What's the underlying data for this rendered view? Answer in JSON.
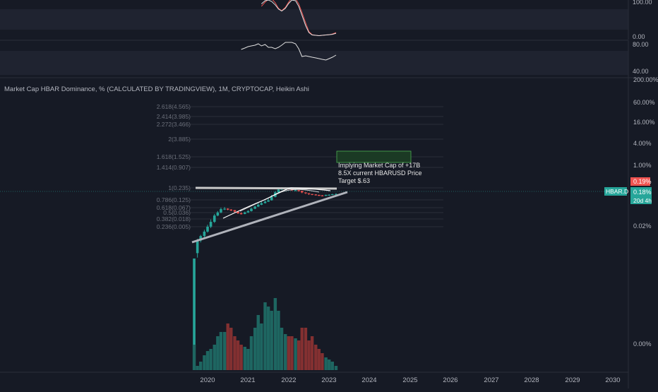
{
  "colors": {
    "background": "#161a25",
    "panel_band": "#1f2330",
    "grid": "#2a2e39",
    "text": "#b2b5be",
    "up": "#26a69a",
    "down": "#ef5350",
    "trendline": "#b2b5be",
    "box": "#1b5e20",
    "box_border": "#4caf50",
    "price_tag": "#26a69a",
    "red_tag": "#ef5350"
  },
  "oscillator_1": {
    "scale_labels": [
      "100.00",
      "0.00"
    ],
    "range": [
      0,
      100
    ],
    "series": [
      {
        "name": "",
        "color": "#ef5350",
        "x": [
          2021.33,
          2021.42,
          2021.5,
          2021.58,
          2021.67,
          2021.75,
          2021.83,
          2021.92,
          2022.0,
          2022.08,
          2022.17,
          2022.25,
          2022.33,
          2022.42,
          2022.5,
          2022.58,
          2022.67,
          2022.75,
          2022.83,
          2022.92,
          2023.0,
          2023.08,
          2023.17
        ],
        "y": [
          88,
          100,
          108,
          110,
          98,
          82,
          75,
          85,
          100,
          112,
          110,
          95,
          70,
          40,
          15,
          6,
          4,
          3,
          4,
          5,
          6,
          8,
          12
        ]
      },
      {
        "name": "",
        "color": "#e0e0e0",
        "x": [
          2021.33,
          2021.42,
          2021.5,
          2021.58,
          2021.67,
          2021.75,
          2021.83,
          2021.92,
          2022.0,
          2022.08,
          2022.17,
          2022.25,
          2022.33,
          2022.42,
          2022.5,
          2022.58,
          2022.67,
          2022.75,
          2022.83,
          2022.92,
          2023.0,
          2023.08,
          2023.17
        ],
        "y": [
          95,
          104,
          106,
          102,
          92,
          80,
          74,
          82,
          96,
          106,
          104,
          88,
          62,
          32,
          12,
          5,
          4,
          3,
          4,
          5,
          6,
          7,
          10
        ]
      }
    ]
  },
  "oscillator_2": {
    "scale_labels": [
      "80.00",
      "40.00"
    ],
    "range": [
      40,
      80
    ],
    "series": [
      {
        "name": "",
        "color": "#e0e0e0",
        "x": [
          2020.83,
          2020.92,
          2021.0,
          2021.08,
          2021.17,
          2021.25,
          2021.33,
          2021.42,
          2021.5,
          2021.58,
          2021.67,
          2021.75,
          2021.83,
          2021.92,
          2022.0,
          2022.08,
          2022.17,
          2022.25,
          2022.33,
          2022.42,
          2022.5,
          2022.58,
          2022.67,
          2022.75,
          2022.83,
          2022.92,
          2023.0,
          2023.08,
          2023.17
        ],
        "y": [
          70,
          72,
          74,
          75,
          76,
          78,
          75,
          77,
          73,
          73,
          71,
          73,
          76,
          80,
          80,
          80,
          78,
          71,
          60,
          61,
          60,
          59,
          58,
          57,
          56,
          55,
          57,
          59,
          62
        ]
      }
    ]
  },
  "main": {
    "title": "Market Cap HBAR Dominance, % (CALCULATED BY TRADINGVIEW), 1M, CRYPTOCAP, Heikin Ashi",
    "y_axis_labels": [
      "200.00%",
      "60.00%",
      "16.00%",
      "4.00%",
      "1.00%",
      "0.02%",
      "0.00%"
    ],
    "fib_labels": [
      "2.618(4.565)",
      "2.414(3.985)",
      "2.272(3.466)",
      "2(3.885)",
      "1.618(1.525)",
      "1.414(0.907)",
      "1(0.235)",
      "0.786(0.125)",
      "0.618(0.067)",
      "0.5(0.036)",
      "0.382(0.018)",
      "0.236(0.005)"
    ],
    "annotation_lines": [
      "Implying Market Cap of +17B",
      "8.5X current HBARUSD Price",
      "Target $.63"
    ],
    "symbol_tag": "HBAR.D",
    "price_tag_red": "0.19%",
    "price_tag_green": "0.18%",
    "countdown": "20d 4h",
    "x_axis_labels": [
      "2020",
      "2021",
      "2022",
      "2023",
      "2024",
      "2025",
      "2026",
      "2027",
      "2028",
      "2029",
      "2030"
    ]
  },
  "chart_data": {
    "type": "candlestick",
    "title": "Market Cap HBAR Dominance, % (CALCULATED BY TRADINGVIEW), 1M, CRYPTOCAP, Heikin Ashi",
    "x_ticks": [
      "2020",
      "2021",
      "2022",
      "2023",
      "2024",
      "2025",
      "2026",
      "2027",
      "2028",
      "2029",
      "2030"
    ],
    "x_range": [
      2019.6,
      2030.5
    ],
    "y_scale": "log",
    "candles": {
      "x": [
        2019.67,
        2019.75,
        2019.83,
        2019.92,
        2020.0,
        2020.08,
        2020.17,
        2020.25,
        2020.33,
        2020.42,
        2020.5,
        2020.58,
        2020.67,
        2020.75,
        2020.83,
        2020.92,
        2021.0,
        2021.08,
        2021.17,
        2021.25,
        2021.33,
        2021.42,
        2021.5,
        2021.58,
        2021.67,
        2021.75,
        2021.83,
        2021.92,
        2022.0,
        2022.08,
        2022.17,
        2022.25,
        2022.33,
        2022.42,
        2022.5,
        2022.58,
        2022.67,
        2022.75,
        2022.83,
        2022.92,
        2023.0,
        2023.08,
        2023.17
      ],
      "open": [
        1e-05,
        0.004,
        0.009,
        0.012,
        0.016,
        0.022,
        0.03,
        0.045,
        0.055,
        0.068,
        0.07,
        0.066,
        0.064,
        0.058,
        0.052,
        0.05,
        0.055,
        0.06,
        0.07,
        0.08,
        0.09,
        0.1,
        0.11,
        0.12,
        0.15,
        0.2,
        0.24,
        0.26,
        0.26,
        0.25,
        0.23,
        0.23,
        0.22,
        0.2,
        0.19,
        0.18,
        0.175,
        0.17,
        0.165,
        0.16,
        0.17,
        0.172,
        0.178
      ],
      "close": [
        0.004,
        0.009,
        0.012,
        0.016,
        0.022,
        0.03,
        0.045,
        0.055,
        0.068,
        0.07,
        0.066,
        0.064,
        0.058,
        0.052,
        0.05,
        0.055,
        0.06,
        0.07,
        0.08,
        0.09,
        0.1,
        0.11,
        0.12,
        0.15,
        0.2,
        0.24,
        0.26,
        0.26,
        0.25,
        0.23,
        0.23,
        0.22,
        0.2,
        0.19,
        0.18,
        0.175,
        0.17,
        0.165,
        0.16,
        0.17,
        0.172,
        0.178,
        0.18
      ],
      "high": [
        0.005,
        0.01,
        0.013,
        0.018,
        0.025,
        0.035,
        0.05,
        0.06,
        0.075,
        0.078,
        0.072,
        0.068,
        0.062,
        0.058,
        0.056,
        0.058,
        0.064,
        0.075,
        0.085,
        0.1,
        0.11,
        0.12,
        0.14,
        0.17,
        0.22,
        0.27,
        0.28,
        0.28,
        0.27,
        0.25,
        0.24,
        0.235,
        0.22,
        0.2,
        0.19,
        0.18,
        0.178,
        0.172,
        0.168,
        0.173,
        0.176,
        0.182,
        0.19
      ],
      "low": [
        5e-06,
        0.003,
        0.008,
        0.011,
        0.015,
        0.02,
        0.028,
        0.043,
        0.052,
        0.064,
        0.063,
        0.06,
        0.055,
        0.05,
        0.048,
        0.049,
        0.053,
        0.058,
        0.068,
        0.078,
        0.088,
        0.098,
        0.108,
        0.118,
        0.145,
        0.19,
        0.23,
        0.24,
        0.24,
        0.22,
        0.22,
        0.21,
        0.19,
        0.18,
        0.17,
        0.168,
        0.163,
        0.158,
        0.155,
        0.158,
        0.167,
        0.17,
        0.175
      ]
    },
    "volume": [
      38,
      2,
      4,
      7,
      9,
      10,
      12,
      16,
      18,
      18,
      22,
      20,
      16,
      14,
      12,
      11,
      10,
      16,
      20,
      26,
      22,
      32,
      30,
      28,
      34,
      28,
      20,
      17,
      16,
      16,
      15,
      14,
      20,
      20,
      14,
      16,
      12,
      10,
      8,
      6,
      5,
      4,
      2
    ],
    "price_now": 0.18,
    "fib_levels": [
      2.618,
      2.414,
      2.272,
      2,
      1.618,
      1.414,
      1,
      0.786,
      0.618,
      0.5,
      0.382,
      0.236
    ],
    "annotations": [
      "Implying Market Cap of +17B",
      "8.5X current HBARUSD Price",
      "Target $.63"
    ]
  }
}
